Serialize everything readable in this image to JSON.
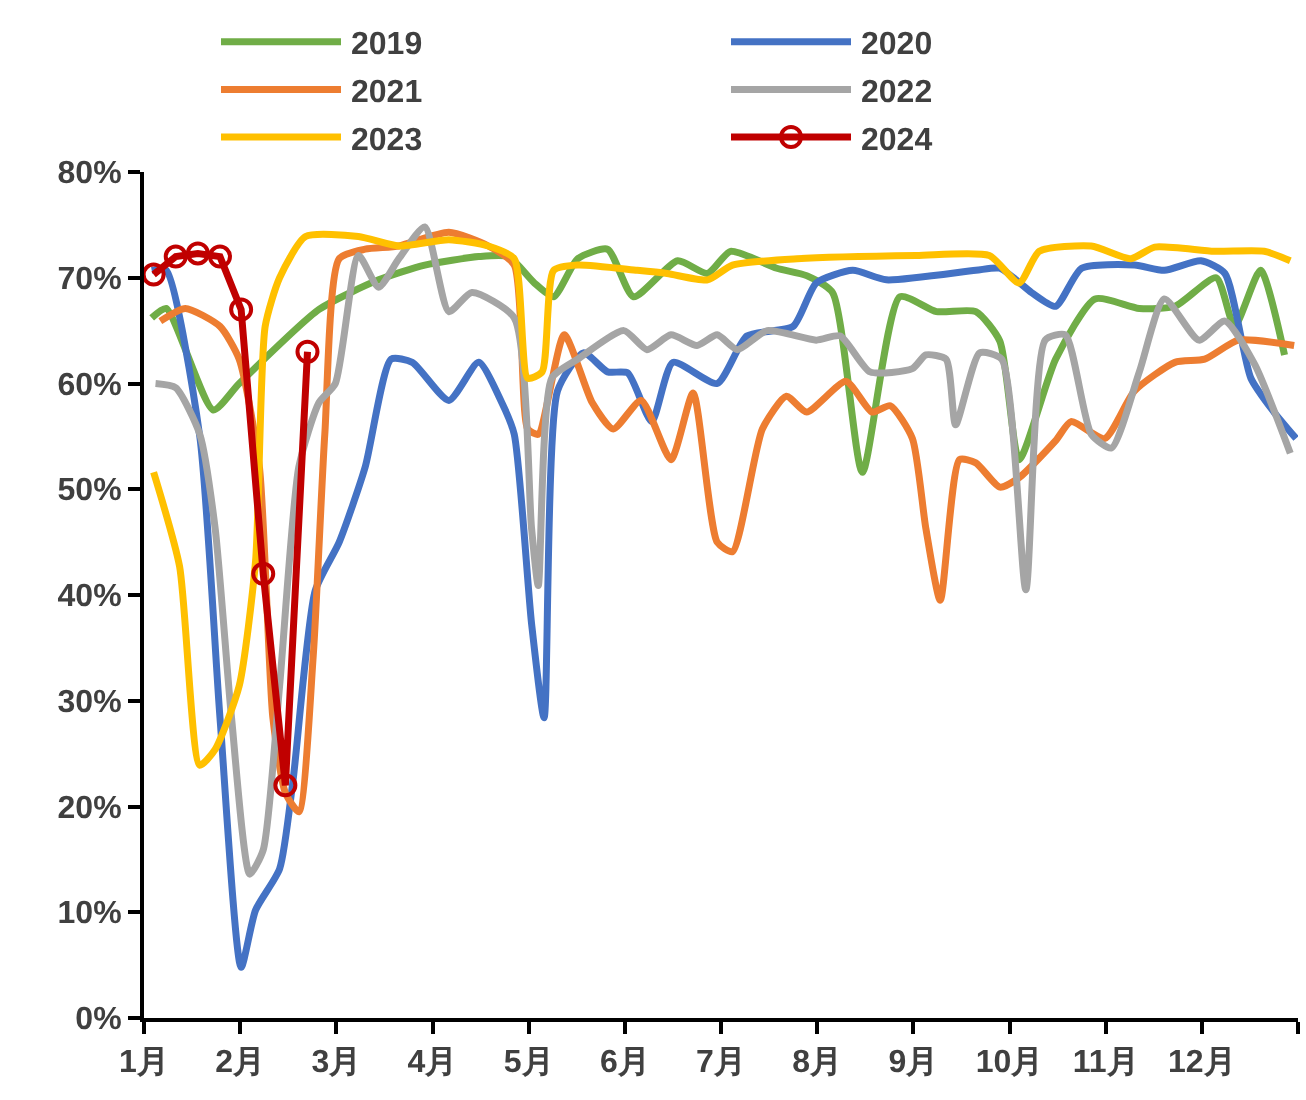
{
  "chart_data": {
    "type": "line",
    "xlim": [
      1,
      13
    ],
    "ylim": [
      0,
      80
    ],
    "xticks": [
      {
        "value": 1,
        "label": "1月"
      },
      {
        "value": 2,
        "label": "2月"
      },
      {
        "value": 3,
        "label": "3月"
      },
      {
        "value": 4,
        "label": "4月"
      },
      {
        "value": 5,
        "label": "5月"
      },
      {
        "value": 6,
        "label": "6月"
      },
      {
        "value": 7,
        "label": "7月"
      },
      {
        "value": 8,
        "label": "8月"
      },
      {
        "value": 9,
        "label": "9月"
      },
      {
        "value": 10,
        "label": "10月"
      },
      {
        "value": 11,
        "label": "11月"
      },
      {
        "value": 12,
        "label": "12月"
      },
      {
        "value": 13,
        "label": null
      }
    ],
    "yticks": [
      {
        "value": 0,
        "label": "0%"
      },
      {
        "value": 10,
        "label": "10%"
      },
      {
        "value": 20,
        "label": "20%"
      },
      {
        "value": 30,
        "label": "30%"
      },
      {
        "value": 40,
        "label": "40%"
      },
      {
        "value": 50,
        "label": "50%"
      },
      {
        "value": 60,
        "label": "60%"
      },
      {
        "value": 70,
        "label": "70%"
      },
      {
        "value": 80,
        "label": "80%"
      }
    ],
    "grid": false,
    "legend": "top",
    "line_style": "solid",
    "series": [
      {
        "name": "2019",
        "color": "#70ad47",
        "marker": "none",
        "x": [
          1.08,
          1.23,
          1.72,
          1.99,
          2.82,
          3.44,
          3.92,
          4.48,
          4.79,
          5.06,
          5.26,
          5.51,
          5.82,
          6.09,
          6.55,
          6.86,
          7.1,
          7.58,
          7.89,
          8.16,
          8.47,
          8.86,
          9.24,
          9.65,
          9.9,
          10.1,
          10.48,
          10.89,
          11.35,
          11.72,
          12.15,
          12.34,
          12.61,
          12.86
        ],
        "values": [
          66.2,
          67.1,
          57.5,
          60,
          67,
          69.8,
          71.2,
          72,
          72,
          69.5,
          68.2,
          71.8,
          72.7,
          68.2,
          71.6,
          70.4,
          72.5,
          70.9,
          70.2,
          68.6,
          51.6,
          68.2,
          66.8,
          66.8,
          64,
          52.8,
          62.3,
          68,
          67.1,
          67.3,
          70,
          65.4,
          70.7,
          62.7
        ]
      },
      {
        "name": "2020",
        "color": "#4472c4",
        "marker": "none",
        "x": [
          1.08,
          1.23,
          1.58,
          1.79,
          2.01,
          2.16,
          2.41,
          2.55,
          2.78,
          3.03,
          3.3,
          3.57,
          3.79,
          4.17,
          4.48,
          4.72,
          4.85,
          5.03,
          5.16,
          5.3,
          5.57,
          5.82,
          6.03,
          6.28,
          6.5,
          6.96,
          7.27,
          7.75,
          7.99,
          8.37,
          8.72,
          9.65,
          9.9,
          10.23,
          10.48,
          10.75,
          11.3,
          11.61,
          11.99,
          12.24,
          12.51,
          12.75,
          12.98
        ],
        "values": [
          70.7,
          70.7,
          55,
          28.4,
          4.8,
          10.2,
          14.1,
          22.5,
          40.4,
          45,
          52.1,
          62.3,
          62,
          58.4,
          62,
          58.2,
          55.2,
          37.3,
          28.4,
          59.3,
          62.9,
          61.1,
          61,
          56.4,
          62,
          60,
          64.5,
          65.4,
          69.5,
          70.7,
          69.8,
          70.7,
          70.9,
          68.6,
          67.3,
          70.9,
          71.2,
          70.7,
          71.6,
          70.4,
          60.5,
          57.3,
          54.8
        ]
      },
      {
        "name": "2021",
        "color": "#ed7d31",
        "marker": "none",
        "x": [
          1.17,
          1.43,
          1.79,
          1.99,
          2.2,
          2.34,
          2.47,
          2.61,
          2.76,
          2.88,
          3.03,
          3.3,
          3.65,
          4.17,
          4.58,
          4.85,
          4.99,
          5.1,
          5.37,
          5.66,
          5.88,
          6.17,
          6.48,
          6.71,
          6.96,
          7.12,
          7.43,
          7.68,
          7.89,
          8.3,
          8.57,
          8.76,
          8.99,
          9.13,
          9.28,
          9.48,
          9.65,
          9.9,
          10.1,
          10.48,
          10.64,
          10.99,
          11.3,
          11.72,
          12.03,
          12.38,
          12.96
        ],
        "values": [
          65.9,
          67.1,
          65.4,
          62.3,
          52.1,
          28.4,
          21.3,
          19.5,
          34.3,
          55.2,
          71.8,
          72.7,
          73,
          74.3,
          73,
          71.2,
          55.7,
          55.2,
          64.6,
          58.2,
          55.7,
          58.4,
          52.8,
          59.1,
          45,
          44.1,
          55.7,
          58.8,
          57.3,
          60.2,
          57.3,
          57.9,
          54.8,
          46.3,
          39.5,
          52.8,
          52.5,
          50.2,
          51.1,
          54.6,
          56.4,
          54.8,
          59.3,
          62,
          62.3,
          64.1,
          63.6
        ]
      },
      {
        "name": "2022",
        "color": "#a5a5a5",
        "marker": "none",
        "x": [
          1.12,
          1.33,
          1.58,
          1.74,
          1.91,
          2.1,
          2.24,
          2.41,
          2.61,
          2.82,
          2.99,
          3.23,
          3.44,
          3.65,
          3.92,
          4.17,
          4.41,
          4.85,
          5.03,
          5.1,
          5.24,
          5.51,
          5.99,
          6.23,
          6.48,
          6.75,
          6.96,
          7.17,
          7.48,
          7.99,
          8.24,
          8.55,
          8.99,
          9.13,
          9.34,
          9.44,
          9.69,
          9.92,
          10.17,
          10.37,
          10.58,
          10.85,
          11.06,
          11.35,
          11.61,
          11.97,
          12.24,
          12.55,
          12.92
        ],
        "values": [
          60,
          59.6,
          55.2,
          46.3,
          28.4,
          13.6,
          15.9,
          31.4,
          52.1,
          58.2,
          60,
          72.1,
          69.1,
          71.8,
          74.8,
          66.8,
          68.6,
          66.2,
          46.3,
          40.9,
          60.5,
          62.3,
          65,
          63.2,
          64.6,
          63.6,
          64.6,
          63.2,
          65,
          64.1,
          64.5,
          61.1,
          61.4,
          62.7,
          62.3,
          56.1,
          62.9,
          62.3,
          40.5,
          64.1,
          64.6,
          55.2,
          53.9,
          61.1,
          68,
          64.1,
          65.9,
          61.8,
          53.4
        ]
      },
      {
        "name": "2023",
        "color": "#ffc000",
        "marker": "none",
        "x": [
          1.1,
          1.37,
          1.58,
          1.74,
          1.99,
          2.16,
          2.26,
          2.41,
          2.68,
          3.23,
          3.65,
          4.17,
          4.58,
          4.85,
          4.99,
          5.14,
          5.26,
          5.51,
          6.13,
          6.44,
          6.86,
          7.12,
          7.79,
          9.03,
          9.79,
          10.1,
          10.31,
          10.85,
          11.26,
          11.51,
          12.13,
          12.65,
          12.92
        ],
        "values": [
          51.6,
          42.7,
          23.9,
          25.4,
          31.4,
          43.2,
          65.4,
          70,
          73.9,
          73.9,
          73,
          73.6,
          73,
          71.8,
          60.5,
          61.1,
          70.7,
          71.2,
          70.7,
          70.4,
          69.8,
          71.2,
          71.8,
          72.1,
          72.1,
          69.5,
          72.5,
          73,
          71.8,
          72.9,
          72.5,
          72.5,
          71.6
        ]
      },
      {
        "name": "2024",
        "color": "#c00000",
        "marker": "circle",
        "x": [
          1.1,
          1.33,
          1.56,
          1.79,
          2.01,
          2.24,
          2.47,
          2.7
        ],
        "values": [
          70.3,
          72,
          72.3,
          72,
          67,
          42,
          22,
          63
        ]
      }
    ]
  }
}
